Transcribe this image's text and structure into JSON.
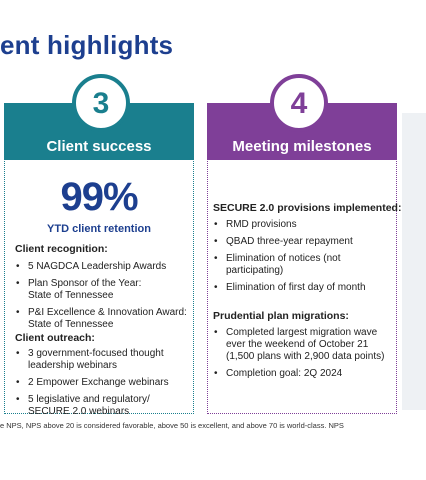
{
  "title": "ent highlights",
  "cards": [
    {
      "number": "3",
      "heading": "Client success",
      "stat": "99%",
      "stat_caption": "YTD client retention",
      "sections": [
        {
          "heading": "Client recognition:",
          "bullets": [
            "5 NAGDCA Leadership Awards",
            "Plan Sponsor of the Year: State of Tennessee",
            "P&I Excellence & Innovation Award: State of Tennessee"
          ]
        },
        {
          "heading": "Client outreach:",
          "bullets": [
            "3 government-focused thought leadership webinars",
            "2 Empower Exchange webinars",
            "5 legislative and regulatory/ SECURE 2.0 webinars"
          ]
        }
      ]
    },
    {
      "number": "4",
      "heading": "Meeting milestones",
      "sections": [
        {
          "heading": "SECURE 2.0 provisions implemented:",
          "bullets": [
            "RMD provisions",
            "QBAD three-year repayment",
            "Elimination of notices (not participating)",
            "Elimination of first day of month"
          ]
        },
        {
          "heading": "Prudential plan migrations:",
          "bullets": [
            "Completed largest migration wave ever the weekend of October 21 (1,500 plans with 2,900 data points)",
            "Completion goal: 2Q 2024"
          ]
        }
      ]
    }
  ],
  "footnote": "e  NPS, NPS above  20 is considered favorable, above 50 is excellent, and above 70 is world-class. NPS",
  "colors": {
    "title": "#1d3f8f",
    "card3_accent": "#1a7f8e",
    "card4_accent": "#7f3f98"
  }
}
